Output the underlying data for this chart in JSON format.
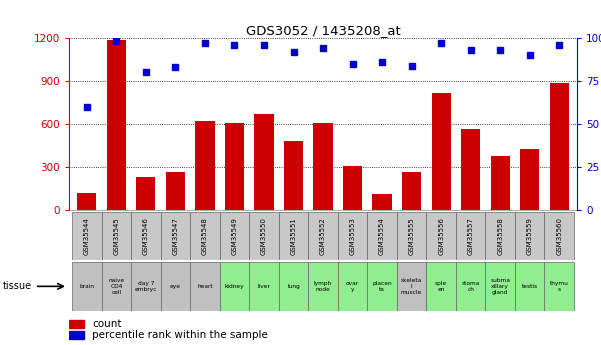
{
  "title": "GDS3052 / 1435208_at",
  "gsm_labels": [
    "GSM35544",
    "GSM35545",
    "GSM35546",
    "GSM35547",
    "GSM35548",
    "GSM35549",
    "GSM35550",
    "GSM35551",
    "GSM35552",
    "GSM35553",
    "GSM35554",
    "GSM35555",
    "GSM35556",
    "GSM35557",
    "GSM35558",
    "GSM35559",
    "GSM35560"
  ],
  "tissue_labels": [
    "brain",
    "naive\nCD4\ncell",
    "day 7\nembryc",
    "eye",
    "heart",
    "kidney",
    "liver",
    "lung",
    "lymph\nnode",
    "ovar\ny",
    "placen\nta",
    "skeleta\nl\nmuscle",
    "sple\nen",
    "stoma\nch",
    "subma\nxillary\ngland",
    "testis",
    "thymu\ns"
  ],
  "tissue_colors": [
    "#c0c0c0",
    "#c0c0c0",
    "#c0c0c0",
    "#c0c0c0",
    "#c0c0c0",
    "#90ee90",
    "#90ee90",
    "#90ee90",
    "#90ee90",
    "#90ee90",
    "#90ee90",
    "#c0c0c0",
    "#90ee90",
    "#90ee90",
    "#90ee90",
    "#90ee90",
    "#90ee90"
  ],
  "count_values": [
    120,
    1185,
    230,
    270,
    620,
    610,
    670,
    480,
    610,
    310,
    115,
    265,
    820,
    570,
    380,
    430,
    890
  ],
  "percentile_values": [
    60,
    98,
    80,
    83,
    97,
    96,
    96,
    92,
    94,
    85,
    86,
    84,
    97,
    93,
    93,
    90,
    96
  ],
  "bar_color": "#cc0000",
  "dot_color": "#0000cc",
  "left_axis_color": "#cc0000",
  "right_axis_color": "#0000cc",
  "ylim_left": [
    0,
    1200
  ],
  "ylim_right": [
    0,
    100
  ],
  "yticks_left": [
    0,
    300,
    600,
    900,
    1200
  ],
  "ytick_labels_left": [
    "0",
    "300",
    "600",
    "900",
    "1200"
  ],
  "yticks_right": [
    0,
    25,
    50,
    75,
    100
  ],
  "ytick_labels_right": [
    "0",
    "25",
    "50",
    "75",
    "100%"
  ],
  "bg_color": "#ffffff",
  "grid_color": "#000000",
  "gsm_row_color": "#c8c8c8"
}
